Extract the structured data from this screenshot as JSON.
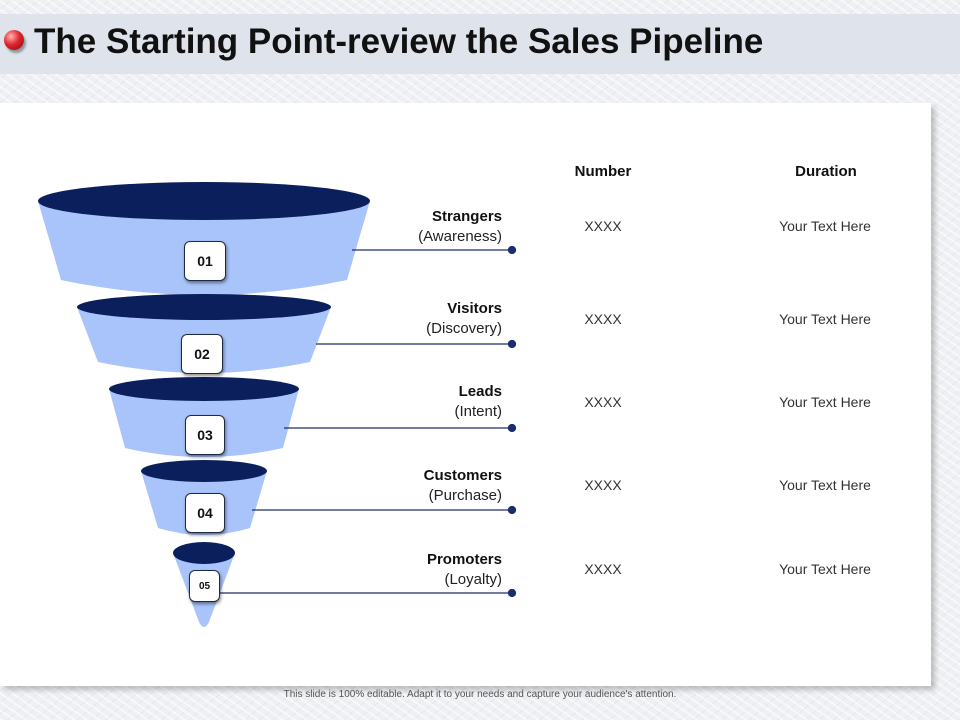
{
  "header": {
    "title": "The Starting Point-review the Sales Pipeline",
    "bullet_icon": "red-sphere-bullet-icon"
  },
  "columns": {
    "number": "Number",
    "duration": "Duration"
  },
  "stages": [
    {
      "step": "01",
      "name": "Strangers",
      "sub": "(Awareness)",
      "number": "XXXX",
      "duration": "Your Text Here"
    },
    {
      "step": "02",
      "name": "Visitors",
      "sub": "(Discovery)",
      "number": "XXXX",
      "duration": "Your Text Here"
    },
    {
      "step": "03",
      "name": "Leads",
      "sub": "(Intent)",
      "number": "XXXX",
      "duration": "Your Text Here"
    },
    {
      "step": "04",
      "name": "Customers",
      "sub": "(Purchase)",
      "number": "XXXX",
      "duration": "Your Text Here"
    },
    {
      "step": "05",
      "name": "Promoters",
      "sub": "(Loyalty)",
      "number": "XXXX",
      "duration": "Your Text Here"
    }
  ],
  "colors": {
    "funnel_top": "#0a1f5c",
    "funnel_body": "#a8c4fb",
    "connector": "#1a2e6e"
  },
  "footer": {
    "note": "This slide is 100% editable. Adapt it to your needs and capture your audience's attention."
  }
}
